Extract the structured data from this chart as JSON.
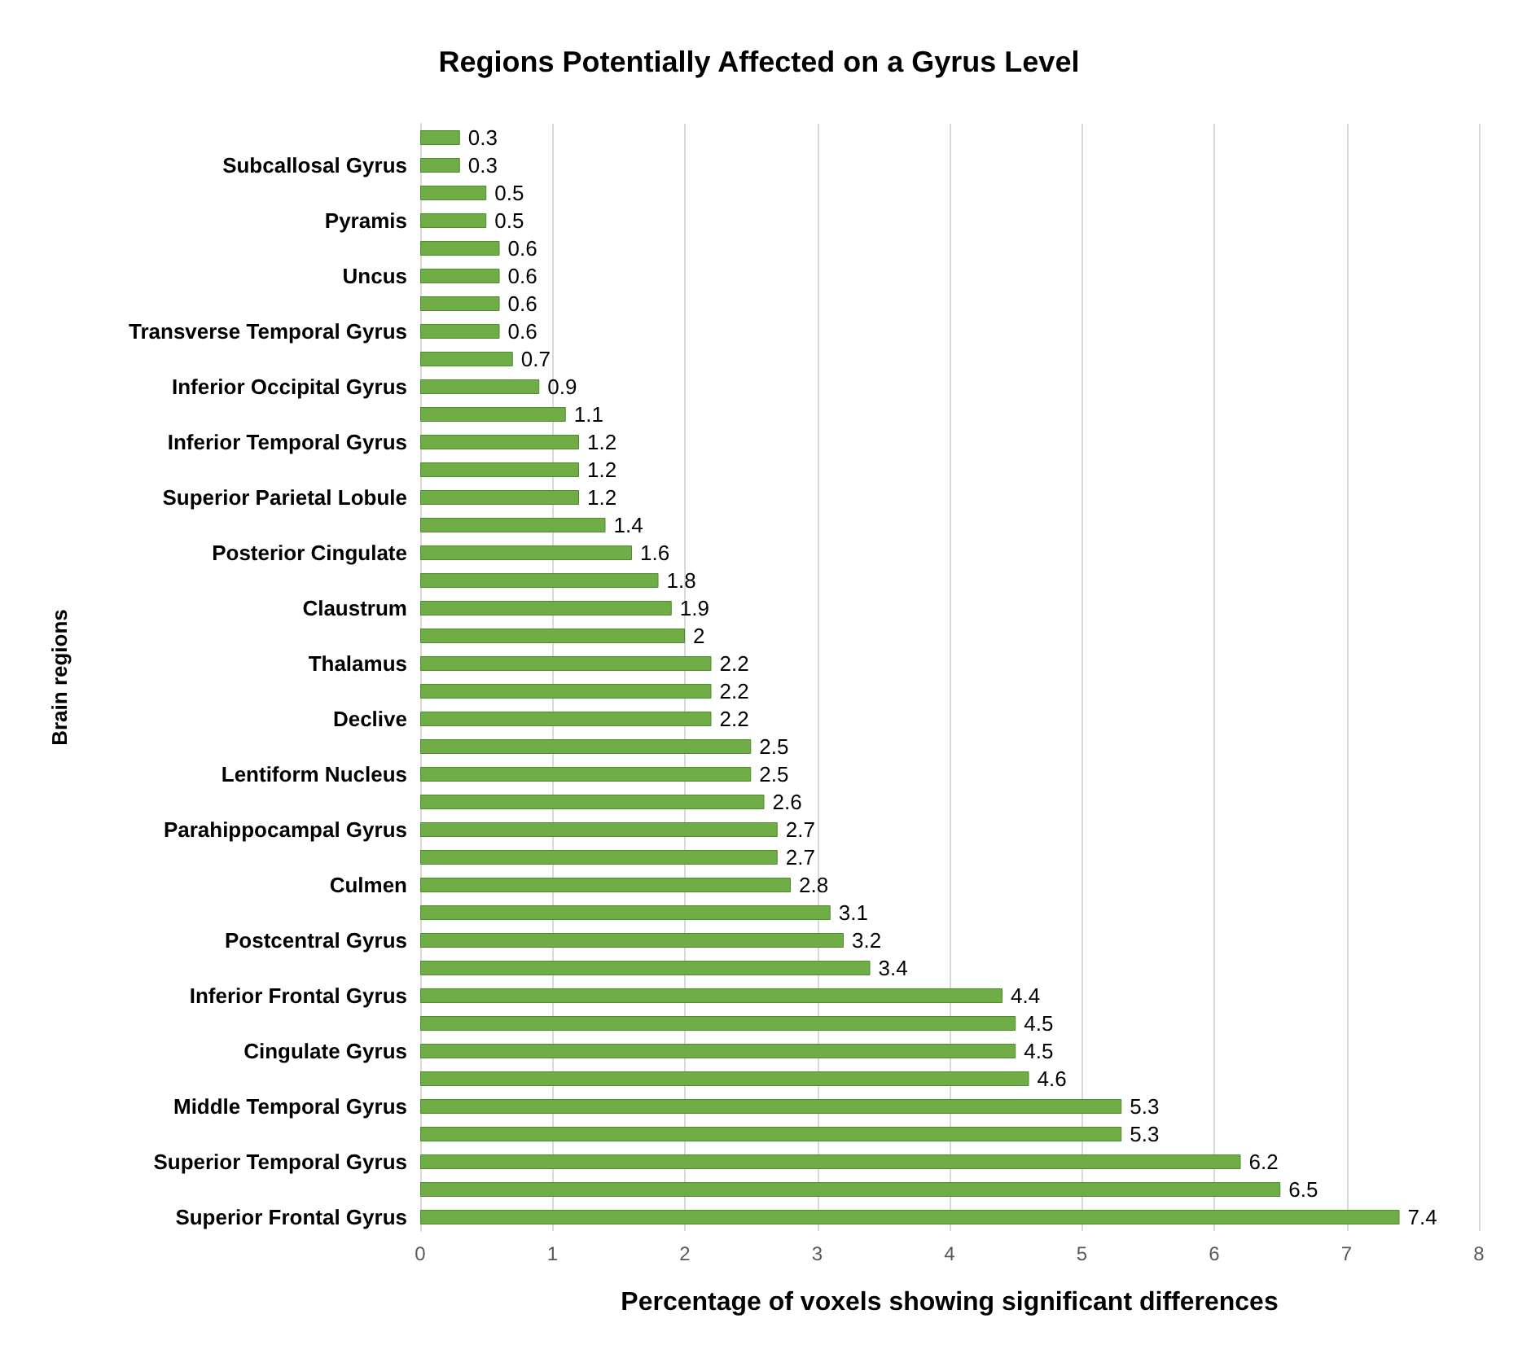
{
  "chart_data": {
    "type": "bar",
    "orientation": "horizontal",
    "title": "Regions Potentially Affected on a Gyrus Level",
    "xlabel": "Percentage of voxels showing significant differences",
    "ylabel": "Brain regions",
    "categories": [
      null,
      "Subcallosal Gyrus",
      null,
      "Pyramis",
      null,
      "Uncus",
      null,
      "Transverse Temporal Gyrus",
      null,
      "Inferior Occipital Gyrus",
      null,
      "Inferior Temporal Gyrus",
      null,
      "Superior Parietal Lobule",
      null,
      "Posterior Cingulate",
      null,
      "Claustrum",
      null,
      "Thalamus",
      null,
      "Declive",
      null,
      "Lentiform Nucleus",
      null,
      "Parahippocampal Gyrus",
      null,
      "Culmen",
      null,
      "Postcentral Gyrus",
      null,
      "Inferior Frontal Gyrus",
      null,
      "Cingulate Gyrus",
      null,
      "Middle Temporal Gyrus",
      null,
      "Superior Temporal Gyrus",
      null,
      "Superior Frontal Gyrus"
    ],
    "values": [
      0.3,
      0.3,
      0.5,
      0.5,
      0.6,
      0.6,
      0.6,
      0.6,
      0.7,
      0.9,
      1.1,
      1.2,
      1.2,
      1.2,
      1.4,
      1.6,
      1.8,
      1.9,
      2,
      2.2,
      2.2,
      2.2,
      2.5,
      2.5,
      2.6,
      2.7,
      2.7,
      2.8,
      3.1,
      3.2,
      3.4,
      4.4,
      4.5,
      4.5,
      4.6,
      5.3,
      5.3,
      6.2,
      6.5,
      7.4
    ],
    "color": "#70ad47",
    "xlim": [
      0,
      8
    ],
    "xticks": [
      0,
      1,
      2,
      3,
      4,
      5,
      6,
      7,
      8
    ],
    "grid": "x",
    "data_labels": true
  }
}
